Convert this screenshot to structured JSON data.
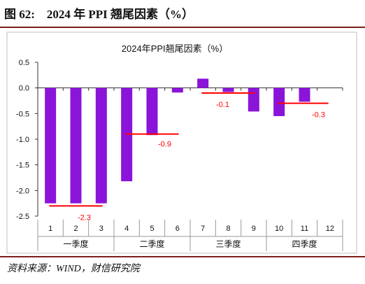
{
  "figure": {
    "title": "图 62:　2024 年 PPI 翘尾因素（%）",
    "source": "资料来源：WIND，财信研究院"
  },
  "chart_data": {
    "type": "bar",
    "title": "2024年PPI翘尾因素（%）",
    "categories": [
      "1",
      "2",
      "3",
      "4",
      "5",
      "6",
      "7",
      "8",
      "9",
      "10",
      "11",
      "12"
    ],
    "groups": [
      {
        "label": "一季度",
        "months": [
          "1",
          "2",
          "3"
        ]
      },
      {
        "label": "二季度",
        "months": [
          "4",
          "5",
          "6"
        ]
      },
      {
        "label": "三季度",
        "months": [
          "7",
          "8",
          "9"
        ]
      },
      {
        "label": "四季度",
        "months": [
          "10",
          "11",
          "12"
        ]
      }
    ],
    "values": [
      -2.25,
      -2.25,
      -2.25,
      -1.82,
      -0.92,
      -0.09,
      0.18,
      -0.08,
      -0.46,
      -0.55,
      -0.27,
      null
    ],
    "quarter_averages": [
      {
        "quarter": "一季度",
        "value": -2.3,
        "label": "-2.3"
      },
      {
        "quarter": "二季度",
        "value": -0.9,
        "label": "-0.9"
      },
      {
        "quarter": "三季度",
        "value": -0.1,
        "label": "-0.1"
      },
      {
        "quarter": "四季度",
        "value": -0.3,
        "label": "-0.3"
      }
    ],
    "ylim": [
      -2.5,
      0.5
    ],
    "yticks": [
      "0.5",
      "0.0",
      "-0.5",
      "-1.0",
      "-1.5",
      "-2.0",
      "-2.5"
    ],
    "ytick_values": [
      0.5,
      0.0,
      -0.5,
      -1.0,
      -1.5,
      -2.0,
      -2.5
    ],
    "xlabel": "",
    "ylabel": "",
    "grid": false,
    "colors": {
      "bar": "#8b14d9",
      "avg_line": "#ff0000",
      "avg_label": "#ff0000",
      "axis": "#333333",
      "frame": "#bfbfbf"
    }
  }
}
